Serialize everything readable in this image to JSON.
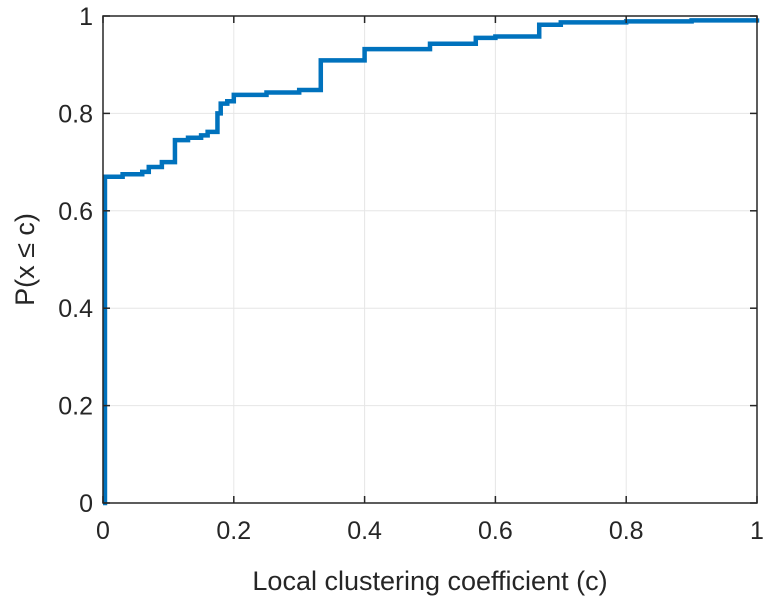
{
  "chart_data": {
    "type": "line",
    "xlabel": "Local clustering coefficient (c)",
    "ylabel": "P(x ≤ c)",
    "xlim": [
      0,
      1
    ],
    "ylim": [
      0,
      1
    ],
    "xticks": [
      0,
      0.2,
      0.4,
      0.6,
      0.8,
      1
    ],
    "yticks": [
      0,
      0.2,
      0.4,
      0.6,
      0.8,
      1
    ],
    "xtick_labels": [
      "0",
      "0.2",
      "0.4",
      "0.6",
      "0.8",
      "1"
    ],
    "ytick_labels": [
      "0",
      "0.2",
      "0.4",
      "0.6",
      "0.8",
      "1"
    ],
    "grid": true,
    "line_color": "#0072bd",
    "series": [
      {
        "step": true,
        "x": [
          0,
          0.003,
          0.03,
          0.06,
          0.07,
          0.09,
          0.11,
          0.13,
          0.15,
          0.16,
          0.175,
          0.18,
          0.19,
          0.2,
          0.25,
          0.3,
          0.333,
          0.4,
          0.5,
          0.57,
          0.6,
          0.667,
          0.7,
          0.8,
          0.9,
          1.0
        ],
        "y": [
          0,
          0.67,
          0.675,
          0.68,
          0.69,
          0.7,
          0.745,
          0.75,
          0.755,
          0.762,
          0.8,
          0.82,
          0.825,
          0.838,
          0.843,
          0.848,
          0.909,
          0.932,
          0.943,
          0.955,
          0.958,
          0.982,
          0.987,
          0.989,
          0.991,
          0.995
        ]
      }
    ]
  }
}
